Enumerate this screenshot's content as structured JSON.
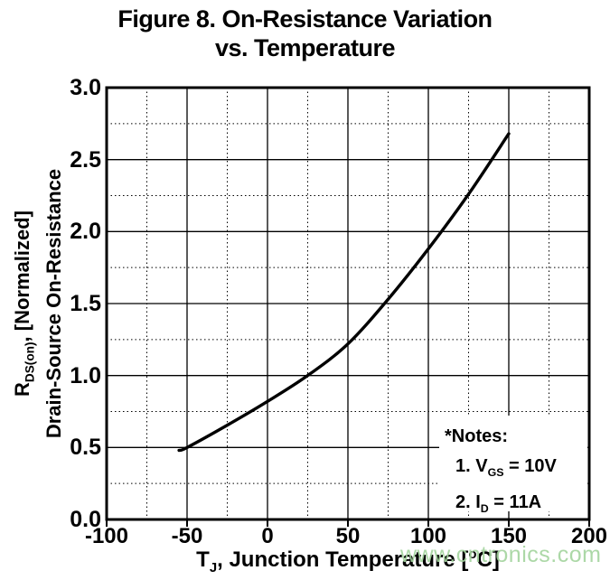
{
  "figure": {
    "title_line1": "Figure 8. On-Resistance Variation",
    "title_line2": "vs. Temperature"
  },
  "axes": {
    "x_label_parts": [
      {
        "t": "T"
      },
      {
        "sub": "J"
      },
      {
        "t": ", Junction Temperature ["
      },
      {
        "sup": "o"
      },
      {
        "t": "C]"
      }
    ],
    "y_label_line1_parts": [
      {
        "t": "R"
      },
      {
        "sub": "DS(on)"
      },
      {
        "t": ", [Normalized]"
      }
    ],
    "y_label_line2": "Drain-Source On-Resistance"
  },
  "notes": {
    "header": "*Notes:",
    "items": [
      {
        "parts": [
          {
            "t": "1. V"
          },
          {
            "sub": "GS"
          },
          {
            "t": " = 10V"
          }
        ]
      },
      {
        "parts": [
          {
            "t": "2. I"
          },
          {
            "sub": "D"
          },
          {
            "t": " = 11A"
          }
        ]
      }
    ]
  },
  "watermark": "www.cntronics.com",
  "colors": {
    "ink": "#000000",
    "background": "#ffffff",
    "watermark_green": "#a4d49e"
  },
  "chart_data": {
    "type": "line",
    "title": "Figure 8. On-Resistance Variation vs. Temperature",
    "xlabel": "TJ, Junction Temperature [°C]",
    "ylabel": "RDS(on), [Normalized] Drain-Source On-Resistance",
    "xlim": [
      -100,
      200
    ],
    "ylim": [
      0.0,
      3.0
    ],
    "x_major_ticks": [
      -100,
      -50,
      0,
      50,
      100,
      150,
      200
    ],
    "x_tick_labels": [
      "-100",
      "-50",
      "0",
      "50",
      "100",
      "150",
      "200"
    ],
    "y_major_ticks": [
      0.0,
      0.5,
      1.0,
      1.5,
      2.0,
      2.5,
      3.0
    ],
    "y_tick_labels": [
      "0.0",
      "0.5",
      "1.0",
      "1.5",
      "2.0",
      "2.5",
      "3.0"
    ],
    "x_minor_step": 25,
    "y_minor_step": 0.25,
    "grid": {
      "major": "solid",
      "minor": "dotted"
    },
    "legend": "none",
    "series": [
      {
        "name": "Normalized RDS(on)",
        "x": [
          -55,
          -50,
          -25,
          0,
          25,
          50,
          75,
          100,
          125,
          150
        ],
        "y": [
          0.48,
          0.5,
          0.655,
          0.82,
          1.0,
          1.22,
          1.53,
          1.88,
          2.26,
          2.68
        ]
      }
    ],
    "annotations": [
      "*Notes:",
      "1. VGS = 10V",
      "2. ID = 11A"
    ]
  }
}
